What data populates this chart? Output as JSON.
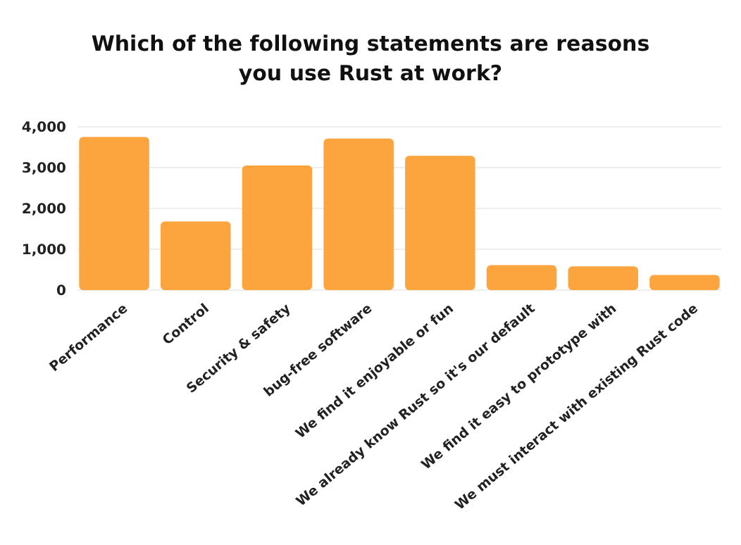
{
  "chart_data": {
    "type": "bar",
    "title": "Which of the following statements are reasons you use Rust at work?",
    "categories": [
      "Performance",
      "Control",
      "Security & safety",
      "bug-free software",
      "We find it enjoyable or fun",
      "We already know Rust so it's our default",
      "We find it easy to prototype with",
      "We must interact with existing Rust code"
    ],
    "values": [
      3750,
      1680,
      3050,
      3710,
      3290,
      610,
      580,
      370
    ],
    "color": "#fca53e",
    "ylim": [
      0,
      4000
    ],
    "yticks": [
      {
        "value": 0,
        "label": "0"
      },
      {
        "value": 1000,
        "label": "1,000"
      },
      {
        "value": 2000,
        "label": "2,000"
      },
      {
        "value": 3000,
        "label": "3,000"
      },
      {
        "value": 4000,
        "label": "4,000"
      }
    ],
    "grid": "y"
  }
}
